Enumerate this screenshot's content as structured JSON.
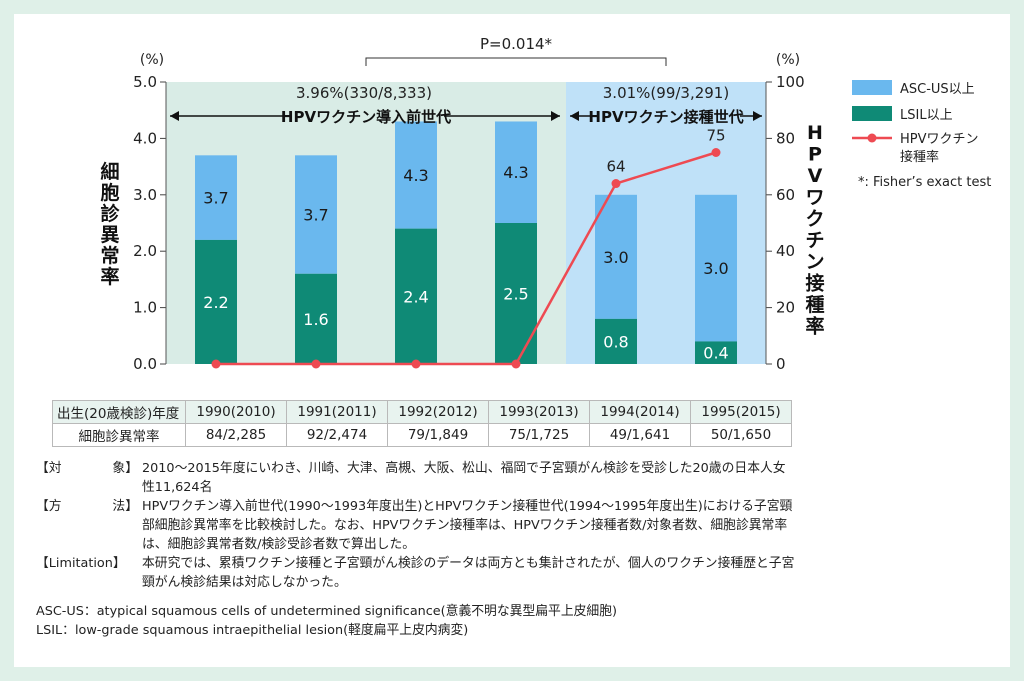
{
  "colors": {
    "asc": "#6ab8ee",
    "lsil": "#0f8a76",
    "rate": "#ee4a52",
    "pre_bg": "#d9ece6",
    "post_bg": "#bfe1f8"
  },
  "chart_data": {
    "type": "bar",
    "stacked": true,
    "categories": [
      "1990(2010)",
      "1991(2011)",
      "1992(2012)",
      "1993(2013)",
      "1994(2014)",
      "1995(2015)"
    ],
    "series": [
      {
        "name": "LSIL以上",
        "values": [
          2.2,
          1.6,
          2.4,
          2.5,
          0.8,
          0.4
        ]
      },
      {
        "name": "ASC-US以上",
        "totals": [
          3.7,
          3.7,
          4.3,
          4.3,
          3.0,
          3.0
        ]
      },
      {
        "name": "HPVワクチン接種率",
        "type": "line",
        "axis": "right",
        "values": [
          0,
          0,
          0,
          0,
          64,
          75
        ]
      }
    ],
    "lsil_labels": [
      "2.2",
      "1.6",
      "2.4",
      "2.5",
      "0.8",
      "0.4"
    ],
    "total_labels": [
      "3.7",
      "3.7",
      "4.3",
      "4.3",
      "3.0",
      "3.0"
    ],
    "rate_labels": [
      "64",
      "75"
    ],
    "left_axis": {
      "label": "細胞診異常率",
      "unit": "(%)",
      "ylim": [
        0,
        5
      ],
      "ticks": [
        "0.0",
        "1.0",
        "2.0",
        "3.0",
        "4.0",
        "5.0"
      ]
    },
    "right_axis": {
      "label": "HPVワクチン接種率",
      "unit": "(%)",
      "ylim": [
        0,
        100
      ],
      "ticks": [
        "0",
        "20",
        "40",
        "60",
        "80",
        "100"
      ]
    },
    "periods": [
      {
        "name": "HPVワクチン導入前世代",
        "summary": "3.96%(330/8,333)"
      },
      {
        "name": "HPVワクチン接種世代",
        "summary": "3.01%(99/3,291)"
      }
    ],
    "p_value": "P=0.014*",
    "legend": {
      "asc": "ASC-US以上",
      "lsil": "LSIL以上",
      "rate_line1": "HPVワクチン",
      "rate_line2": "接種率",
      "note": "*: Fisher’s exact test"
    }
  },
  "table": {
    "row1_header": "出生(20歳検診)年度",
    "row2_header": "細胞診異常率",
    "years": [
      "1990(2010)",
      "1991(2011)",
      "1992(2012)",
      "1993(2013)",
      "1994(2014)",
      "1995(2015)"
    ],
    "rates": [
      "84/2,285",
      "92/2,474",
      "79/1,849",
      "75/1,725",
      "49/1,641",
      "50/1,650"
    ]
  },
  "notes": {
    "target_label_a": "【対",
    "target_label_b": "象】",
    "target_text": "2010～2015年度にいわき、川崎、大津、高槻、大阪、松山、福岡で子宮頸がん検診を受診した20歳の日本人女性11,624名",
    "method_label_a": "【方",
    "method_label_b": "法】",
    "method_text": "HPVワクチン導入前世代(1990～1993年度出生)とHPVワクチン接種世代(1994～1995年度出生)における子宮頸部細胞診異常率を比較検討した。なお、HPVワクチン接種率は、HPVワクチン接種者数/対象者数、細胞診異常率は、細胞診異常者数/検診受診者数で算出した。",
    "limitation_label": "【Limitation】",
    "limitation_text": "本研究では、累積ワクチン接種と子宮頸がん検診のデータは両方とも集計されたが、個人のワクチン接種歴と子宮頸がん検診結果は対応しなかった。",
    "ascus": "ASC-US：atypical squamous cells of undetermined significance(意義不明な異型扁平上皮細胞)",
    "lsil": "LSIL：low-grade squamous intraepithelial lesion(軽度扁平上皮内病変)"
  }
}
